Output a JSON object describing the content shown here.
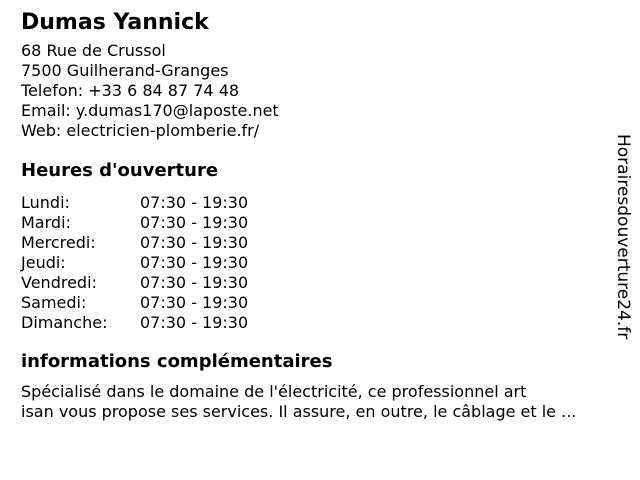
{
  "business": {
    "name": "Dumas Yannick"
  },
  "contact": {
    "address_line1": "68 Rue de Crussol",
    "address_line2": "7500 Guilherand-Granges",
    "phone": {
      "label": "Telefon:",
      "value": "+33 6 84 87 74 48"
    },
    "email": {
      "label": "Email:",
      "value": "y.dumas170@laposte.net"
    },
    "web": {
      "label": "Web:",
      "value": "electricien-plomberie.fr/"
    }
  },
  "hours": {
    "heading": "Heures d'ouverture",
    "rows": [
      {
        "day": "Lundi:",
        "time": "07:30 - 19:30"
      },
      {
        "day": "Mardi:",
        "time": "07:30 - 19:30"
      },
      {
        "day": "Mercredi:",
        "time": "07:30 - 19:30"
      },
      {
        "day": "Jeudi:",
        "time": "07:30 - 19:30"
      },
      {
        "day": "Vendredi:",
        "time": "07:30 - 19:30"
      },
      {
        "day": "Samedi:",
        "time": "07:30 - 19:30"
      },
      {
        "day": "Dimanche:",
        "time": "07:30 - 19:30"
      }
    ]
  },
  "info": {
    "heading": "informations complémentaires",
    "line1": "Spécialisé dans le domaine de l'électricité, ce professionnel art",
    "line2": "isan vous propose ses services. Il assure, en outre, le câblage et le ..."
  },
  "watermark": {
    "text": "Horairesdouverture24.fr"
  },
  "colors": {
    "background": "#ffffff",
    "text": "#000000"
  }
}
